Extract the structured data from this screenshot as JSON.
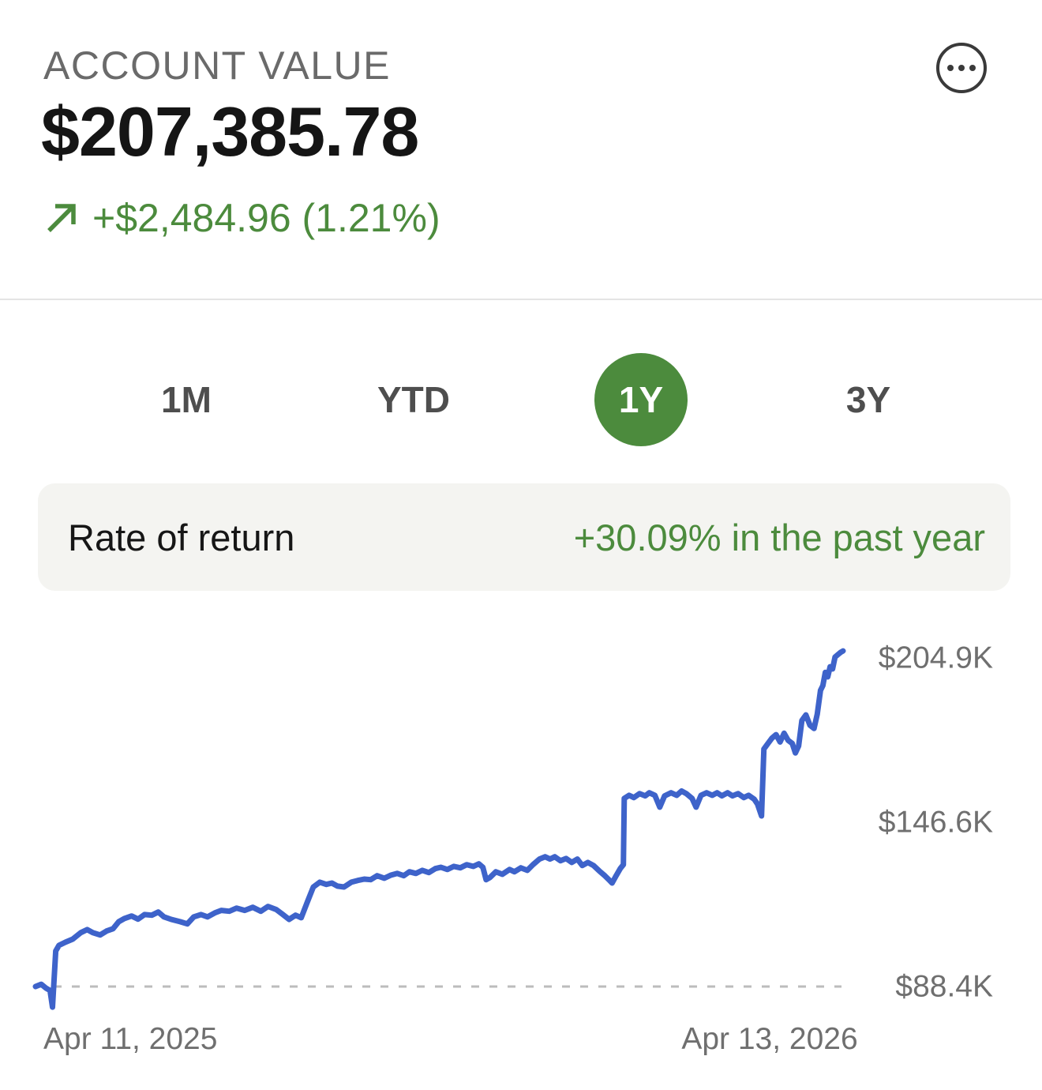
{
  "header": {
    "title": "ACCOUNT VALUE",
    "menu_icon": "ellipsis-in-circle"
  },
  "account": {
    "value": "$207,385.78",
    "change": "+$2,484.96 (1.21%)",
    "trend_icon": "arrow-up-right"
  },
  "tabs": [
    {
      "label": "1M",
      "selected": false
    },
    {
      "label": "YTD",
      "selected": false
    },
    {
      "label": "1Y",
      "selected": true
    },
    {
      "label": "3Y",
      "selected": false
    }
  ],
  "rate_row": {
    "label": "Rate of return",
    "value": "+30.09% in the past year"
  },
  "colors": {
    "positive_green": "#4c8b3d",
    "line_blue": "#3e63ca",
    "axis_gray": "#6f6f6f",
    "baseline_dash": "#bcbcbc",
    "tab_selected_bg": "#4c8b3d"
  },
  "chart_data": {
    "type": "line",
    "title": "Account value over the past year",
    "x_start_label": "Apr 11, 2025",
    "x_end_label": "Apr 13, 2026",
    "y_unit": "thousand USD",
    "ylim": [
      81,
      211
    ],
    "grid": "dashed baseline only",
    "legend": "none",
    "y_ticks": [
      {
        "label": "$204.9K",
        "value": 204.9
      },
      {
        "label": "$146.6K",
        "value": 146.6
      },
      {
        "label": "$88.4K",
        "value": 88.4
      }
    ],
    "baseline_value": 88.4,
    "series": [
      {
        "name": "Account value",
        "points": [
          [
            0.0,
            88.4
          ],
          [
            0.007,
            89.2
          ],
          [
            0.013,
            87.8
          ],
          [
            0.018,
            87.0
          ],
          [
            0.021,
            81.1
          ],
          [
            0.025,
            101.0
          ],
          [
            0.029,
            103.0
          ],
          [
            0.037,
            104.1
          ],
          [
            0.046,
            105.2
          ],
          [
            0.056,
            107.5
          ],
          [
            0.064,
            108.6
          ],
          [
            0.071,
            107.5
          ],
          [
            0.08,
            106.7
          ],
          [
            0.088,
            108.1
          ],
          [
            0.096,
            108.9
          ],
          [
            0.103,
            111.4
          ],
          [
            0.11,
            112.5
          ],
          [
            0.119,
            113.4
          ],
          [
            0.127,
            112.3
          ],
          [
            0.135,
            113.9
          ],
          [
            0.144,
            113.7
          ],
          [
            0.152,
            114.8
          ],
          [
            0.159,
            113.1
          ],
          [
            0.168,
            112.2
          ],
          [
            0.179,
            111.4
          ],
          [
            0.188,
            110.6
          ],
          [
            0.196,
            113.1
          ],
          [
            0.205,
            113.9
          ],
          [
            0.213,
            113.1
          ],
          [
            0.222,
            114.5
          ],
          [
            0.23,
            115.4
          ],
          [
            0.24,
            115.1
          ],
          [
            0.249,
            116.2
          ],
          [
            0.259,
            115.4
          ],
          [
            0.269,
            116.5
          ],
          [
            0.279,
            115.1
          ],
          [
            0.288,
            116.8
          ],
          [
            0.298,
            115.7
          ],
          [
            0.306,
            114.0
          ],
          [
            0.314,
            112.2
          ],
          [
            0.322,
            113.7
          ],
          [
            0.329,
            112.8
          ],
          [
            0.337,
            118.7
          ],
          [
            0.344,
            123.7
          ],
          [
            0.352,
            125.4
          ],
          [
            0.36,
            124.6
          ],
          [
            0.367,
            125.1
          ],
          [
            0.374,
            124.0
          ],
          [
            0.382,
            123.7
          ],
          [
            0.391,
            125.4
          ],
          [
            0.399,
            126.0
          ],
          [
            0.407,
            126.5
          ],
          [
            0.415,
            126.3
          ],
          [
            0.423,
            127.7
          ],
          [
            0.432,
            126.8
          ],
          [
            0.44,
            127.9
          ],
          [
            0.448,
            128.5
          ],
          [
            0.456,
            127.7
          ],
          [
            0.463,
            129.1
          ],
          [
            0.471,
            128.5
          ],
          [
            0.479,
            129.6
          ],
          [
            0.487,
            128.8
          ],
          [
            0.495,
            130.2
          ],
          [
            0.502,
            130.7
          ],
          [
            0.51,
            129.9
          ],
          [
            0.518,
            131.0
          ],
          [
            0.526,
            130.5
          ],
          [
            0.534,
            131.6
          ],
          [
            0.542,
            131.0
          ],
          [
            0.549,
            131.9
          ],
          [
            0.554,
            130.7
          ],
          [
            0.558,
            126.3
          ],
          [
            0.563,
            127.1
          ],
          [
            0.57,
            129.1
          ],
          [
            0.578,
            128.2
          ],
          [
            0.587,
            129.9
          ],
          [
            0.593,
            129.1
          ],
          [
            0.601,
            130.5
          ],
          [
            0.609,
            129.6
          ],
          [
            0.616,
            131.6
          ],
          [
            0.624,
            133.6
          ],
          [
            0.631,
            134.4
          ],
          [
            0.637,
            133.6
          ],
          [
            0.643,
            134.4
          ],
          [
            0.65,
            133.0
          ],
          [
            0.657,
            133.8
          ],
          [
            0.664,
            132.4
          ],
          [
            0.671,
            133.6
          ],
          [
            0.677,
            131.3
          ],
          [
            0.684,
            132.4
          ],
          [
            0.691,
            131.3
          ],
          [
            0.698,
            129.4
          ],
          [
            0.705,
            127.7
          ],
          [
            0.71,
            126.3
          ],
          [
            0.714,
            125.1
          ],
          [
            0.719,
            127.7
          ],
          [
            0.724,
            130.2
          ],
          [
            0.728,
            131.6
          ],
          [
            0.729,
            155.1
          ],
          [
            0.735,
            156.2
          ],
          [
            0.741,
            155.4
          ],
          [
            0.748,
            156.8
          ],
          [
            0.755,
            156.0
          ],
          [
            0.76,
            157.1
          ],
          [
            0.767,
            156.2
          ],
          [
            0.773,
            152.0
          ],
          [
            0.779,
            156.0
          ],
          [
            0.787,
            157.1
          ],
          [
            0.794,
            156.2
          ],
          [
            0.8,
            157.7
          ],
          [
            0.806,
            156.8
          ],
          [
            0.813,
            155.1
          ],
          [
            0.818,
            152.0
          ],
          [
            0.824,
            156.2
          ],
          [
            0.831,
            157.1
          ],
          [
            0.838,
            156.2
          ],
          [
            0.844,
            157.1
          ],
          [
            0.85,
            156.0
          ],
          [
            0.857,
            157.1
          ],
          [
            0.863,
            156.0
          ],
          [
            0.87,
            156.8
          ],
          [
            0.877,
            155.4
          ],
          [
            0.883,
            156.2
          ],
          [
            0.89,
            154.8
          ],
          [
            0.894,
            153.1
          ],
          [
            0.899,
            148.9
          ],
          [
            0.902,
            172.6
          ],
          [
            0.907,
            174.6
          ],
          [
            0.912,
            176.5
          ],
          [
            0.917,
            177.7
          ],
          [
            0.922,
            175.1
          ],
          [
            0.927,
            178.2
          ],
          [
            0.932,
            175.7
          ],
          [
            0.937,
            174.6
          ],
          [
            0.941,
            171.2
          ],
          [
            0.945,
            173.7
          ],
          [
            0.949,
            182.7
          ],
          [
            0.954,
            184.7
          ],
          [
            0.959,
            181.0
          ],
          [
            0.964,
            179.9
          ],
          [
            0.968,
            185.0
          ],
          [
            0.972,
            193.4
          ],
          [
            0.975,
            195.1
          ],
          [
            0.978,
            199.8
          ],
          [
            0.981,
            198.2
          ],
          [
            0.984,
            201.8
          ],
          [
            0.987,
            201.0
          ],
          [
            0.99,
            205.2
          ],
          [
            0.994,
            206.2
          ],
          [
            0.997,
            206.9
          ],
          [
            1.0,
            207.4
          ]
        ]
      }
    ]
  }
}
